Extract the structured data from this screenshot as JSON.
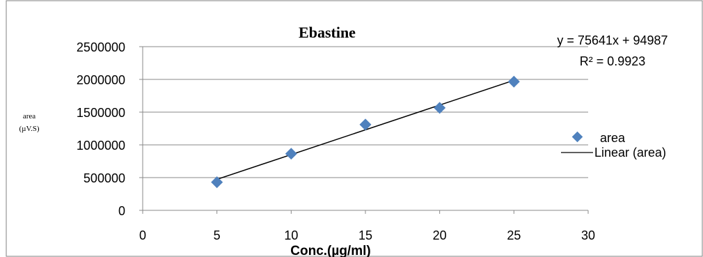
{
  "chart_data": {
    "type": "scatter",
    "title": "Ebastine",
    "xlabel": "Conc.(µg/ml)",
    "ylabel_line1": "area",
    "ylabel_line2": "(µV.S)",
    "xlim": [
      0,
      30
    ],
    "ylim": [
      0,
      2500000
    ],
    "x_ticks": [
      0,
      5,
      10,
      15,
      20,
      25,
      30
    ],
    "y_ticks": [
      0,
      500000,
      1000000,
      1500000,
      2000000,
      2500000
    ],
    "y_tick_labels": [
      "0",
      "500000",
      "1000000",
      "1500000",
      "2000000",
      "2500000"
    ],
    "grid": "horizontal",
    "series": [
      {
        "name": "area",
        "x": [
          5,
          10,
          15,
          20,
          25
        ],
        "y": [
          430000,
          865000,
          1310000,
          1565000,
          1965000
        ],
        "color": "#4f81bd",
        "marker": "diamond"
      }
    ],
    "trendline": {
      "name": "Linear (area)",
      "slope": 75641,
      "intercept": 94987,
      "x_range": [
        5,
        25
      ],
      "color": "#000000"
    },
    "equation": "y = 75641x + 94987",
    "r_squared": "R² = 0.9923",
    "legend": [
      "area",
      "Linear (area)"
    ],
    "legend_position": "right"
  }
}
